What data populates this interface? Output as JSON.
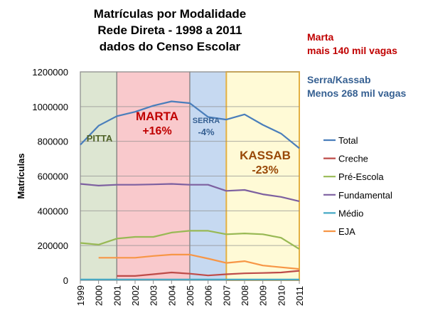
{
  "chart_data": {
    "type": "line",
    "title": [
      "Matrículas por Modalidade",
      "Rede Direta - 1998 a 2011",
      "dados do Censo Escolar"
    ],
    "ylabel": "Matrículas",
    "xlabel": "",
    "ylim": [
      0,
      1200000
    ],
    "yticks": [
      "0",
      "200000",
      "400000",
      "600000",
      "800000",
      "1000000",
      "1200000"
    ],
    "x": [
      1999,
      2000,
      2001,
      2002,
      2003,
      2004,
      2005,
      2006,
      2007,
      2008,
      2009,
      2010,
      2011
    ],
    "grid": true,
    "legend_position": "right",
    "series": [
      {
        "name": "Total",
        "color": "#4a7ebb",
        "values": [
          780000,
          890000,
          945000,
          970000,
          1005000,
          1030000,
          1020000,
          940000,
          925000,
          955000,
          895000,
          845000,
          760000
        ]
      },
      {
        "name": "Creche",
        "color": "#be4b48",
        "values": [
          null,
          null,
          25000,
          25000,
          35000,
          45000,
          38000,
          28000,
          35000,
          40000,
          42000,
          45000,
          55000
        ]
      },
      {
        "name": "Pré-Escola",
        "color": "#98b954",
        "values": [
          215000,
          205000,
          240000,
          250000,
          250000,
          275000,
          285000,
          285000,
          265000,
          270000,
          265000,
          245000,
          180000
        ]
      },
      {
        "name": "Fundamental",
        "color": "#7d60a0",
        "values": [
          555000,
          545000,
          550000,
          550000,
          552000,
          555000,
          550000,
          550000,
          515000,
          520000,
          495000,
          480000,
          455000
        ]
      },
      {
        "name": "Médio",
        "color": "#46aac5",
        "values": [
          5000,
          5000,
          5000,
          5000,
          5000,
          5000,
          5000,
          5000,
          5000,
          5000,
          5000,
          5000,
          5000
        ]
      },
      {
        "name": "EJA",
        "color": "#f79646",
        "values": [
          null,
          130000,
          130000,
          130000,
          140000,
          148000,
          148000,
          125000,
          100000,
          110000,
          85000,
          75000,
          65000
        ]
      }
    ],
    "regions": [
      {
        "label": "PITTA",
        "sublabel": "",
        "from": 1999,
        "to": 2001,
        "fill": "#dde6d2",
        "stroke": "#7f7f7f",
        "label_color": "#4f6228"
      },
      {
        "label": "MARTA",
        "sublabel": "+16%",
        "from": 2001,
        "to": 2005,
        "fill": "#f9c9cc",
        "stroke": "#7f7f7f",
        "label_color": "#c00000"
      },
      {
        "label": "SERRA",
        "sublabel": "-4%",
        "from": 2005,
        "to": 2007,
        "fill": "#c6d9f1",
        "stroke": "#7f7f7f",
        "label_color": "#366092"
      },
      {
        "label": "KASSAB",
        "sublabel": "-23%",
        "from": 2007,
        "to": 2011,
        "fill": "#fffad6",
        "stroke": "#e3b043",
        "label_color": "#984807"
      }
    ],
    "annotations": [
      {
        "lines": [
          "Marta",
          "mais 140 mil vagas"
        ],
        "color": "#c00000"
      },
      {
        "lines": [
          "Serra/Kassab",
          "Menos 268 mil vagas"
        ],
        "color": "#366092"
      }
    ]
  }
}
